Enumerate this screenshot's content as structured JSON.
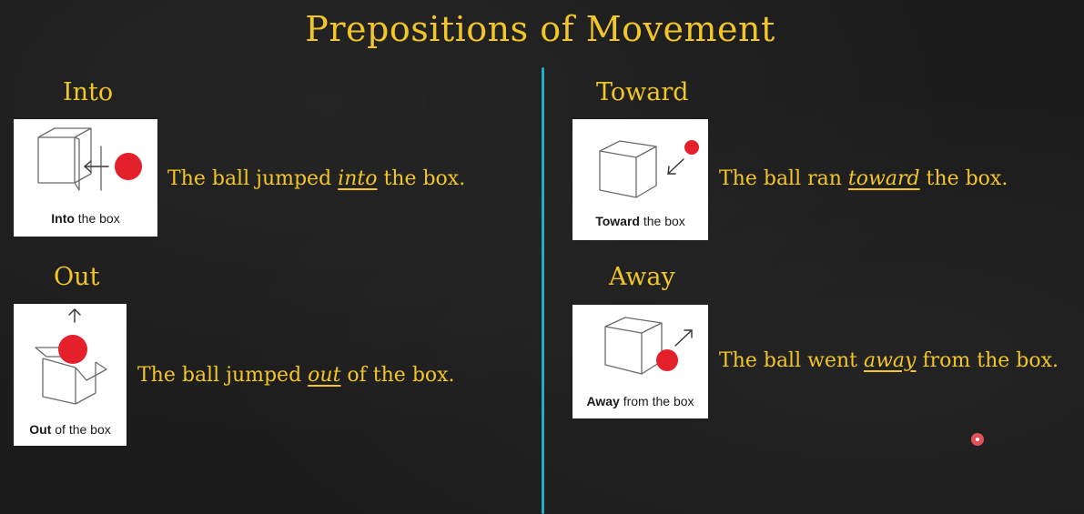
{
  "title": "Prepositions of Movement",
  "accent_color": "#f2c628",
  "divider_color": "#22b7cf",
  "sections": {
    "into": {
      "heading": "Into",
      "caption_bold": "Into",
      "caption_rest": " the box",
      "sentence_before": "The ball jumped ",
      "sentence_prep": "into",
      "sentence_after": " the box."
    },
    "toward": {
      "heading": "Toward",
      "caption_bold": "Toward",
      "caption_rest": " the box",
      "sentence_before": "The ball ran ",
      "sentence_prep": "toward",
      "sentence_after": " the box."
    },
    "out": {
      "heading": "Out",
      "caption_bold": "Out",
      "caption_rest": " of the box",
      "sentence_before": "The ball jumped ",
      "sentence_prep": "out",
      "sentence_after": " of the box."
    },
    "away": {
      "heading": "Away",
      "caption_bold": "Away",
      "caption_rest": " from the box",
      "sentence_before": "The ball went ",
      "sentence_prep": "away",
      "sentence_after": " from the box."
    }
  }
}
